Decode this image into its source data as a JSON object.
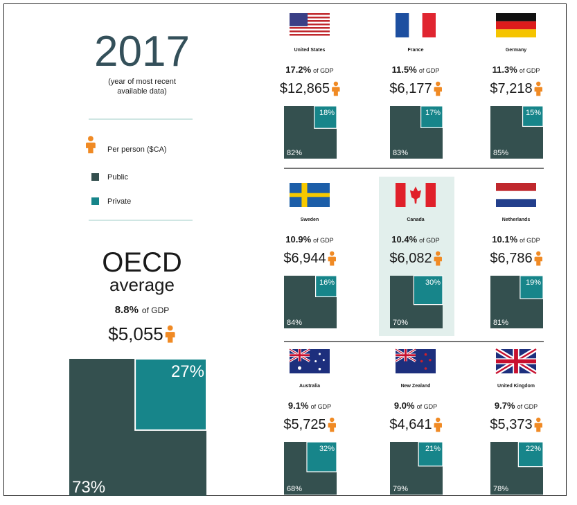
{
  "year": "2017",
  "year_note": [
    "(year of most recent",
    "available data)"
  ],
  "legend": {
    "per_person": "Per person ($CA)",
    "public": "Public",
    "private": "Private"
  },
  "oecd": {
    "title": "OECD",
    "subtitle": "average",
    "gdp_share": "8.8%",
    "gdp_unit": "of GDP",
    "per_person": "$5,055",
    "private": {
      "value": 27,
      "label": "27%"
    },
    "public": {
      "value": 73,
      "label": "73%"
    }
  },
  "countries": [
    {
      "name": "United States",
      "gdp_share": "17.2%",
      "gdp_unit": "of GDP",
      "per_person": "$12,865",
      "private": {
        "value": 18,
        "label": "18%"
      },
      "public": {
        "value": 82,
        "label": "82%"
      },
      "highlight": false
    },
    {
      "name": "France",
      "gdp_share": "11.5%",
      "gdp_unit": "of GDP",
      "per_person": "$6,177",
      "private": {
        "value": 17,
        "label": "17%"
      },
      "public": {
        "value": 83,
        "label": "83%"
      },
      "highlight": false
    },
    {
      "name": "Germany",
      "gdp_share": "11.3%",
      "gdp_unit": "of GDP",
      "per_person": "$7,218",
      "private": {
        "value": 15,
        "label": "15%"
      },
      "public": {
        "value": 85,
        "label": "85%"
      },
      "highlight": false
    },
    {
      "name": "Sweden",
      "gdp_share": "10.9%",
      "gdp_unit": "of GDP",
      "per_person": "$6,944",
      "private": {
        "value": 16,
        "label": "16%"
      },
      "public": {
        "value": 84,
        "label": "84%"
      },
      "highlight": false
    },
    {
      "name": "Canada",
      "gdp_share": "10.4%",
      "gdp_unit": "of GDP",
      "per_person": "$6,082",
      "private": {
        "value": 30,
        "label": "30%"
      },
      "public": {
        "value": 70,
        "label": "70%"
      },
      "highlight": true
    },
    {
      "name": "Netherlands",
      "gdp_share": "10.1%",
      "gdp_unit": "of GDP",
      "per_person": "$6,786",
      "private": {
        "value": 19,
        "label": "19%"
      },
      "public": {
        "value": 81,
        "label": "81%"
      },
      "highlight": false
    },
    {
      "name": "Australia",
      "gdp_share": "9.1%",
      "gdp_unit": "of GDP",
      "per_person": "$5,725",
      "private": {
        "value": 32,
        "label": "32%"
      },
      "public": {
        "value": 68,
        "label": "68%"
      },
      "highlight": false
    },
    {
      "name": "New Zealand",
      "gdp_share": "9.0%",
      "gdp_unit": "of GDP",
      "per_person": "$4,641",
      "private": {
        "value": 21,
        "label": "21%"
      },
      "public": {
        "value": 79,
        "label": "79%"
      },
      "highlight": false
    },
    {
      "name": "United Kingdom",
      "gdp_share": "9.7%",
      "gdp_unit": "of GDP",
      "per_person": "$5,373",
      "private": {
        "value": 22,
        "label": "22%"
      },
      "public": {
        "value": 78,
        "label": "78%"
      },
      "highlight": false
    }
  ]
}
